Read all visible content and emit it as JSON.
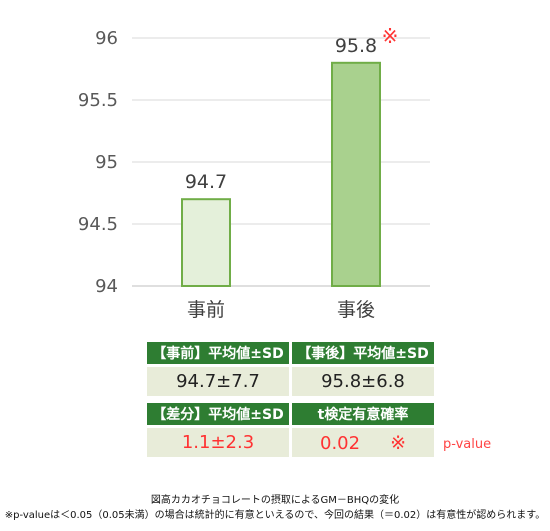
{
  "chart_data": {
    "type": "bar",
    "categories": [
      "事前",
      "事後"
    ],
    "values": [
      94.7,
      95.8
    ],
    "data_labels": [
      "94.7",
      "95.8"
    ],
    "ylim": [
      94,
      96
    ],
    "yticks": [
      "94",
      "94.5",
      "95",
      "95.5",
      "96"
    ],
    "grid": true,
    "bar_colors": [
      "#e4f0da",
      "#a9d18e"
    ],
    "bar_border": "#70ad47",
    "significance_mark": "※",
    "significance_on": "事後"
  },
  "table": {
    "before_header": "【事前】平均値±SD",
    "after_header": "【事後】平均値±SD",
    "before_value": "94.7±7.7",
    "after_value": "95.8±6.8",
    "diff_header": "【差分】平均値±SD",
    "ttest_header": "t検定有意確率",
    "diff_value": "1.1±2.3",
    "p_value": "0.02",
    "p_mark": "※",
    "p_note": "p-value"
  },
  "caption": {
    "line1": "図高カカオチョコレートの摂取によるGM－BHQの変化",
    "line2": "※p-valueは＜0.05（0.05未満）の場合は統計的に有意といえるので、今回の結果（＝0.02）は有意性が認められます。"
  }
}
